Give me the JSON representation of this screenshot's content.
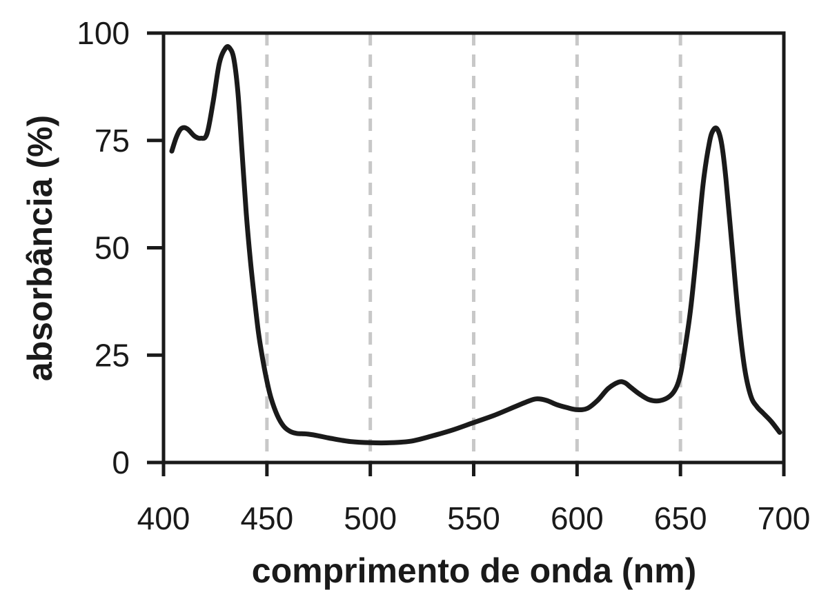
{
  "chart_data": {
    "type": "line",
    "title": "",
    "xlabel": "comprimento de onda (nm)",
    "ylabel": "absorbância (%)",
    "xlim": [
      400,
      700
    ],
    "ylim": [
      0,
      100
    ],
    "x_ticks": [
      400,
      450,
      500,
      550,
      600,
      650,
      700
    ],
    "y_ticks": [
      0,
      25,
      50,
      75,
      100
    ],
    "grid": "vertical dashed lines at 450, 500, 550, 600, 650",
    "grid_color": "#c8c8c8",
    "line_color": "#1a1a1a",
    "series": [
      {
        "x": [
          404,
          406,
          408,
          410,
          412,
          415,
          418,
          421,
          424,
          427,
          430,
          432,
          434,
          436,
          438,
          440,
          442,
          444,
          446,
          448,
          450,
          452,
          455,
          458,
          461,
          464,
          467,
          470,
          475,
          480,
          490,
          500,
          510,
          520,
          530,
          540,
          550,
          560,
          570,
          575,
          580,
          585,
          590,
          595,
          600,
          605,
          610,
          615,
          620,
          623,
          626,
          630,
          635,
          640,
          645,
          648,
          650,
          652,
          655,
          658,
          661,
          664,
          666,
          668,
          670,
          672,
          675,
          678,
          681,
          684,
          687,
          690,
          694,
          698
        ],
        "y": [
          72.5,
          75.5,
          77.5,
          78,
          77.5,
          76,
          75.5,
          76.5,
          84,
          93,
          96.5,
          96.5,
          94,
          86,
          72,
          58,
          47,
          38,
          30,
          24,
          19,
          15,
          11,
          8.5,
          7.3,
          6.8,
          6.7,
          6.6,
          6.2,
          5.7,
          4.9,
          4.6,
          4.6,
          5.0,
          6.2,
          7.6,
          9.3,
          11,
          13,
          14,
          14.8,
          14.5,
          13.5,
          12.8,
          12.3,
          12.6,
          14.5,
          17.2,
          18.7,
          18.6,
          17.5,
          16.0,
          14.6,
          14.4,
          15.5,
          17.5,
          20.5,
          26,
          36,
          50,
          65,
          74.5,
          77.5,
          77.5,
          74,
          66,
          50,
          34,
          22,
          15.5,
          13,
          11.5,
          9.5,
          7.0
        ]
      }
    ]
  }
}
